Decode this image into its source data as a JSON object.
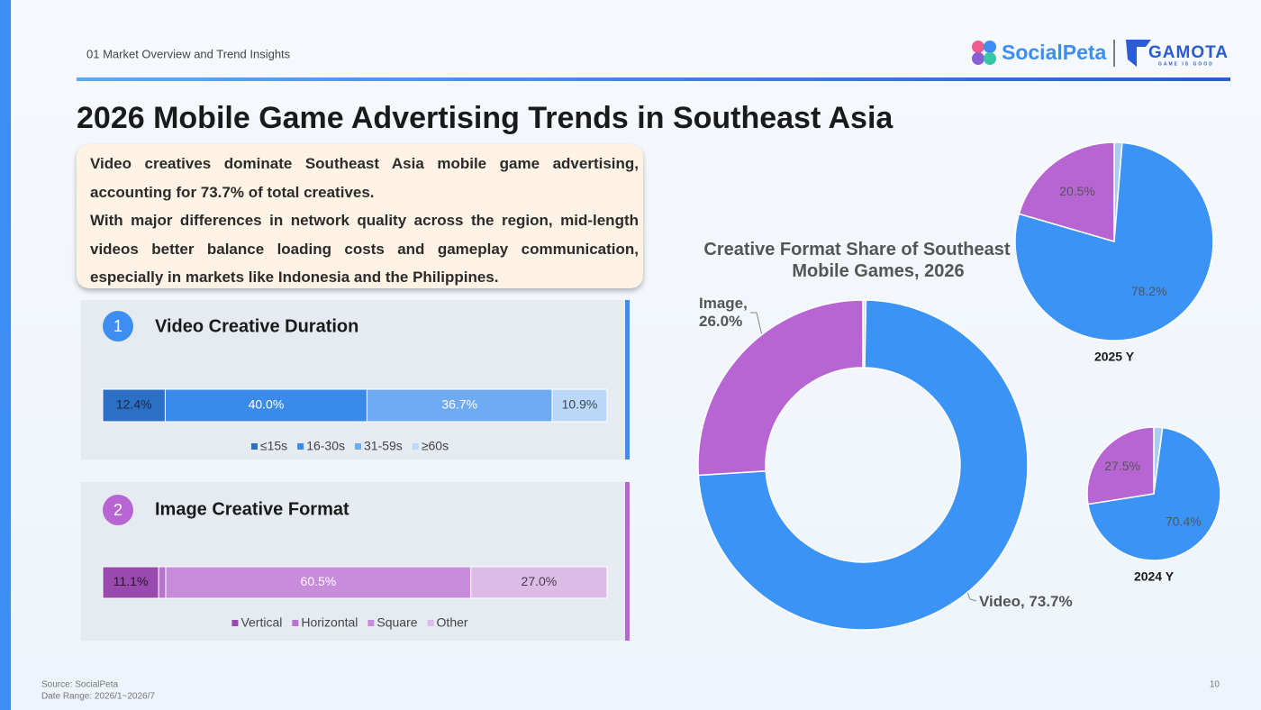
{
  "header": {
    "section": "01 Market Overview and Trend Insights",
    "logo_primary": "SocialPeta",
    "logo_secondary": "GAMOTA",
    "logo_tagline": "GAME IS GOOD"
  },
  "title": "2026 Mobile Game Advertising Trends in Southeast Asia",
  "summary": [
    "Video creatives dominate Southeast Asia mobile game advertising, accounting for 73.7% of total creatives.",
    "With major differences in network quality across the region, mid-length videos better balance loading costs and gameplay communication, especially in markets like Indonesia and the Philippines."
  ],
  "panels": [
    {
      "number": "1",
      "title": "Video Creative Duration"
    },
    {
      "number": "2",
      "title": "Image Creative Format"
    }
  ],
  "chart_data": [
    {
      "type": "bar",
      "orientation": "horizontal",
      "stacked": true,
      "series": [
        {
          "name": "≤15s",
          "color": "#2c6fc6",
          "label_color": "#1c2a40",
          "values": [
            12.4
          ],
          "value_labels": [
            "12.4%"
          ]
        },
        {
          "name": "16-30s",
          "color": "#3a8ae9",
          "label_color": "#ffffff",
          "values": [
            40.0
          ],
          "value_labels": [
            "40.0%"
          ]
        },
        {
          "name": "31-59s",
          "color": "#6eabf3",
          "label_color": "#ffffff",
          "values": [
            36.7
          ],
          "value_labels": [
            "36.7%"
          ]
        },
        {
          "name": "≥60s",
          "color": "#bcd8f8",
          "label_color": "#3a4656",
          "values": [
            10.9
          ],
          "value_labels": [
            "10.9%"
          ]
        }
      ]
    },
    {
      "type": "bar",
      "orientation": "horizontal",
      "stacked": true,
      "series": [
        {
          "name": "Vertical",
          "color": "#9a4aae",
          "label_color": "#2a1530",
          "values": [
            11.1
          ],
          "value_labels": [
            "11.1%"
          ]
        },
        {
          "name": "Horizontal",
          "color": "#b873cc",
          "label_color": "#ffffff",
          "values": [
            1.4
          ],
          "value_labels": [
            null
          ]
        },
        {
          "name": "Square",
          "color": "#c98bdb",
          "label_color": "#ffffff",
          "values": [
            60.5
          ],
          "value_labels": [
            "60.5%"
          ]
        },
        {
          "name": "Other",
          "color": "#dcbbe7",
          "label_color": "#4a3a50",
          "values": [
            27.0
          ],
          "value_labels": [
            "27.0%"
          ]
        }
      ]
    },
    {
      "type": "pie",
      "donut": true,
      "title": "Creative Format Share of Southeast Asia Mobile Games, 2026",
      "categories": [
        null,
        "Video",
        "Image"
      ],
      "values": [
        0.3,
        73.7,
        26.0
      ],
      "value_labels": [
        null,
        "Video, 73.7%",
        "Image, 26.0%"
      ],
      "colors": [
        "#cfe3f7",
        "#3a93f5",
        "#b865d4"
      ]
    },
    {
      "type": "pie",
      "donut": false,
      "title": "2025 Y",
      "values": [
        1.3,
        78.2,
        20.5
      ],
      "value_labels": [
        null,
        "78.2%",
        "20.5%"
      ],
      "colors": [
        "#a8cdf0",
        "#3a93f5",
        "#b865d4"
      ]
    },
    {
      "type": "pie",
      "donut": false,
      "title": "2024 Y",
      "values": [
        2.1,
        70.4,
        27.5
      ],
      "value_labels": [
        null,
        "70.4%",
        "27.5%"
      ],
      "colors": [
        "#a8cdf0",
        "#3a93f5",
        "#b865d4"
      ]
    }
  ],
  "footer": {
    "source": "Source: SocialPeta",
    "date_range": "Date Range:  2026/1~2026/7",
    "page": "10"
  }
}
